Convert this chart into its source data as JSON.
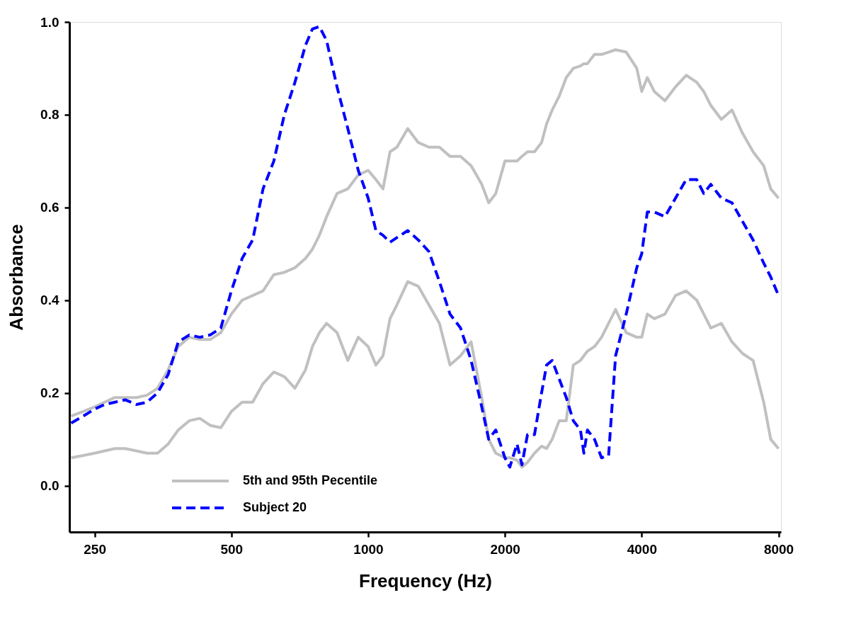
{
  "chart_data": {
    "type": "line",
    "xlabel": "Frequency (Hz)",
    "ylabel": "Absorbance",
    "log": "x",
    "xlim": [
      220,
      8100
    ],
    "xticks": [
      250,
      500,
      1000,
      2000,
      4000,
      8000
    ],
    "ylim": [
      -0.1,
      1.0
    ],
    "yticks": [
      {
        "value": 0,
        "label": "0.0"
      },
      0.2,
      0.4,
      0.6,
      0.8,
      {
        "value": 1,
        "label": "1.0"
      }
    ],
    "grid": false,
    "legend": "bottom left",
    "marker": "none",
    "x": [
      222,
      236,
      250,
      263,
      277,
      292,
      309,
      326,
      344,
      363,
      382,
      404,
      426,
      449,
      474,
      500,
      528,
      557,
      587,
      620,
      654,
      690,
      728,
      754,
      781,
      810,
      854,
      902,
      951,
      1000,
      1040,
      1078,
      1117,
      1157,
      1222,
      1289,
      1360,
      1435,
      1514,
      1597,
      1685,
      1778,
      1842,
      1909,
      2000,
      2050,
      2126,
      2180,
      2242,
      2323,
      2408,
      2470,
      2541,
      2633,
      2729,
      2828,
      2932,
      2984,
      3038,
      3149,
      3263,
      3382,
      3504,
      3698,
      3901,
      4000,
      4115,
      4264,
      4500,
      4747,
      5011,
      5286,
      5478,
      5677,
      5989,
      6320,
      6666,
      7033,
      7422,
      7691,
      8000
    ],
    "series": [
      {
        "name": "5th and 95th Pecentile",
        "color": "#c0c0c0",
        "line_style": "solid",
        "values": [
          0.15,
          0.16,
          0.17,
          0.18,
          0.19,
          0.19,
          0.19,
          0.195,
          0.21,
          0.25,
          0.3,
          0.32,
          0.315,
          0.315,
          0.33,
          0.37,
          0.4,
          0.41,
          0.42,
          0.455,
          0.46,
          0.47,
          0.49,
          0.51,
          0.54,
          0.58,
          0.63,
          0.64,
          0.67,
          0.68,
          0.66,
          0.64,
          0.72,
          0.73,
          0.77,
          0.74,
          0.73,
          0.73,
          0.71,
          0.71,
          0.69,
          0.65,
          0.61,
          0.63,
          0.7,
          0.7,
          0.7,
          0.71,
          0.72,
          0.72,
          0.74,
          0.78,
          0.81,
          0.84,
          0.88,
          0.9,
          0.905,
          0.91,
          0.91,
          0.93,
          0.93,
          0.935,
          0.94,
          0.935,
          0.9,
          0.85,
          0.88,
          0.85,
          0.83,
          0.86,
          0.885,
          0.87,
          0.85,
          0.82,
          0.79,
          0.81,
          0.76,
          0.72,
          0.69,
          0.64,
          0.62
        ]
      },
      {
        "color": "#c0c0c0",
        "line_style": "solid",
        "values": [
          0.06,
          0.065,
          0.07,
          0.075,
          0.08,
          0.08,
          0.075,
          0.07,
          0.07,
          0.09,
          0.12,
          0.14,
          0.145,
          0.13,
          0.125,
          0.16,
          0.18,
          0.18,
          0.22,
          0.245,
          0.235,
          0.21,
          0.25,
          0.3,
          0.33,
          0.35,
          0.33,
          0.27,
          0.32,
          0.3,
          0.26,
          0.28,
          0.36,
          0.39,
          0.44,
          0.43,
          0.39,
          0.35,
          0.26,
          0.28,
          0.31,
          0.19,
          0.1,
          0.07,
          0.06,
          0.06,
          0.055,
          0.04,
          0.05,
          0.07,
          0.085,
          0.08,
          0.1,
          0.14,
          0.14,
          0.26,
          0.27,
          0.28,
          0.29,
          0.3,
          0.32,
          0.35,
          0.38,
          0.33,
          0.32,
          0.32,
          0.37,
          0.36,
          0.37,
          0.41,
          0.42,
          0.4,
          0.37,
          0.34,
          0.35,
          0.31,
          0.285,
          0.27,
          0.18,
          0.1,
          0.08
        ]
      },
      {
        "name": "Subject 20",
        "color": "#0000ff",
        "line_style": "dashed",
        "values": [
          0.135,
          0.15,
          0.165,
          0.175,
          0.18,
          0.185,
          0.175,
          0.18,
          0.2,
          0.24,
          0.31,
          0.325,
          0.32,
          0.325,
          0.34,
          0.42,
          0.49,
          0.53,
          0.64,
          0.7,
          0.8,
          0.87,
          0.95,
          0.985,
          0.99,
          0.96,
          0.86,
          0.77,
          0.68,
          0.62,
          0.55,
          0.54,
          0.525,
          0.535,
          0.55,
          0.53,
          0.505,
          0.44,
          0.37,
          0.34,
          0.27,
          0.17,
          0.1,
          0.12,
          0.06,
          0.04,
          0.09,
          0.045,
          0.11,
          0.11,
          0.2,
          0.26,
          0.27,
          0.23,
          0.19,
          0.14,
          0.12,
          0.07,
          0.12,
          0.1,
          0.06,
          0.065,
          0.28,
          0.37,
          0.47,
          0.5,
          0.59,
          0.59,
          0.58,
          0.62,
          0.66,
          0.66,
          0.63,
          0.65,
          0.62,
          0.61,
          0.57,
          0.53,
          0.48,
          0.45,
          0.41
        ]
      }
    ]
  }
}
